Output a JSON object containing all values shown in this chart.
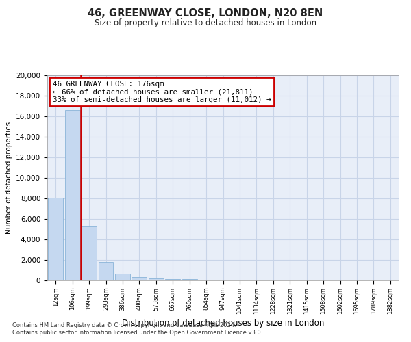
{
  "title1": "46, GREENWAY CLOSE, LONDON, N20 8EN",
  "title2": "Size of property relative to detached houses in London",
  "xlabel": "Distribution of detached houses by size in London",
  "ylabel": "Number of detached properties",
  "categories": [
    "12sqm",
    "106sqm",
    "199sqm",
    "293sqm",
    "386sqm",
    "480sqm",
    "573sqm",
    "667sqm",
    "760sqm",
    "854sqm",
    "947sqm",
    "1041sqm",
    "1134sqm",
    "1228sqm",
    "1321sqm",
    "1415sqm",
    "1508sqm",
    "1602sqm",
    "1695sqm",
    "1789sqm",
    "1882sqm"
  ],
  "bar_heights": [
    8100,
    16600,
    5300,
    1800,
    700,
    320,
    200,
    130,
    110,
    80,
    0,
    0,
    0,
    0,
    0,
    0,
    0,
    0,
    0,
    0,
    0
  ],
  "bar_color": "#c5d8f0",
  "bar_edge_color": "#8ab4d8",
  "annotation_line1": "46 GREENWAY CLOSE: 176sqm",
  "annotation_line2": "← 66% of detached houses are smaller (21,811)",
  "annotation_line3": "33% of semi-detached houses are larger (11,012) →",
  "annotation_box_color": "#ffffff",
  "annotation_box_edge": "#cc0000",
  "vline_color": "#cc0000",
  "grid_color": "#c8d4e8",
  "background_color": "#e8eef8",
  "ylim": [
    0,
    20000
  ],
  "yticks": [
    0,
    2000,
    4000,
    6000,
    8000,
    10000,
    12000,
    14000,
    16000,
    18000,
    20000
  ],
  "footer1": "Contains HM Land Registry data © Crown copyright and database right 2024.",
  "footer2": "Contains public sector information licensed under the Open Government Licence v3.0."
}
